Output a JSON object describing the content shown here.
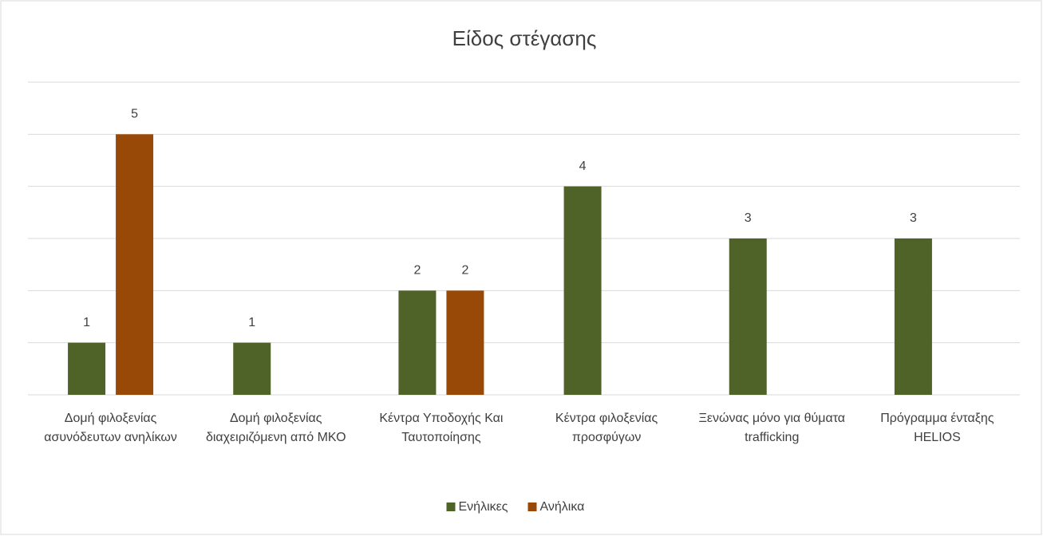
{
  "chart_data": {
    "type": "bar",
    "title": "Είδος στέγασης",
    "categories": [
      "Δομή φιλοξενίας ασυνόδευτων ανηλίκων",
      "Δομή φιλοξενίας διαχειριζόμενη από ΜΚΟ",
      "Κέντρα Υποδοχής Και Ταυτοποίησης",
      "Κέντρα φιλοξενίας προσφύγων",
      "Ξενώνας μόνο για θύματα trafficking",
      "Πρόγραμμα ένταξης HELIOS"
    ],
    "series": [
      {
        "name": "Ενήλικες",
        "color": "#4f6228",
        "values": [
          1,
          1,
          2,
          4,
          3,
          3
        ]
      },
      {
        "name": "Ανήλικα",
        "color": "#984807",
        "values": [
          5,
          null,
          2,
          null,
          null,
          null
        ]
      }
    ],
    "ylim": [
      0,
      6
    ],
    "yticks": [
      0,
      1,
      2,
      3,
      4,
      5,
      6
    ],
    "grid": true,
    "legend": "bottom"
  }
}
